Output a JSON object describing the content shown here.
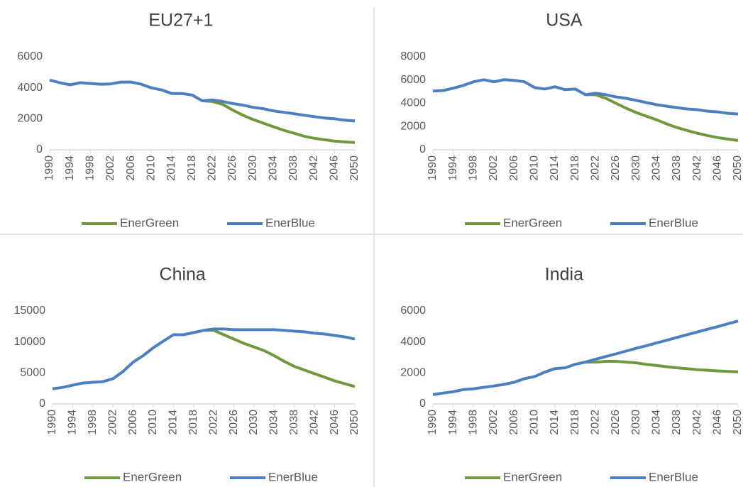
{
  "chart_data": [
    {
      "type": "line",
      "title": "EU27+1",
      "x": [
        1990,
        1992,
        1994,
        1996,
        1998,
        2000,
        2002,
        2004,
        2006,
        2008,
        2010,
        2012,
        2014,
        2016,
        2018,
        2020,
        2022,
        2024,
        2026,
        2028,
        2030,
        2032,
        2034,
        2036,
        2038,
        2040,
        2042,
        2044,
        2046,
        2048,
        2050
      ],
      "xlim": [
        1990,
        2050
      ],
      "xticks": [
        1990,
        1994,
        1998,
        2002,
        2006,
        2010,
        2014,
        2018,
        2022,
        2026,
        2030,
        2034,
        2038,
        2042,
        2046,
        2050
      ],
      "ylim": [
        0,
        6000
      ],
      "yticks": [
        0,
        2000,
        4000,
        6000
      ],
      "grid": false,
      "legend": "bottom",
      "series": [
        {
          "name": "EnerGreen",
          "color": "#70983c",
          "values": [
            null,
            null,
            null,
            null,
            null,
            null,
            null,
            null,
            null,
            null,
            null,
            null,
            null,
            null,
            null,
            3160,
            3120,
            2930,
            2560,
            2230,
            1950,
            1720,
            1490,
            1260,
            1070,
            880,
            740,
            650,
            560,
            510,
            470
          ]
        },
        {
          "name": "EnerBlue",
          "color": "#4a7fc1",
          "values": [
            4500,
            4330,
            4190,
            4330,
            4280,
            4230,
            4250,
            4370,
            4370,
            4230,
            4000,
            3860,
            3630,
            3630,
            3530,
            3160,
            3210,
            3120,
            2980,
            2880,
            2740,
            2650,
            2510,
            2420,
            2330,
            2230,
            2140,
            2050,
            2000,
            1910,
            1860
          ]
        }
      ]
    },
    {
      "type": "line",
      "title": "USA",
      "x": [
        1990,
        1992,
        1994,
        1996,
        1998,
        2000,
        2002,
        2004,
        2006,
        2008,
        2010,
        2012,
        2014,
        2016,
        2018,
        2020,
        2022,
        2024,
        2026,
        2028,
        2030,
        2032,
        2034,
        2036,
        2038,
        2040,
        2042,
        2044,
        2046,
        2048,
        2050
      ],
      "xlim": [
        1990,
        2050
      ],
      "xticks": [
        1990,
        1994,
        1998,
        2002,
        2006,
        2010,
        2014,
        2018,
        2022,
        2026,
        2030,
        2034,
        2038,
        2042,
        2046,
        2050
      ],
      "ylim": [
        0,
        8000
      ],
      "yticks": [
        0,
        2000,
        4000,
        6000,
        8000
      ],
      "grid": false,
      "legend": "bottom",
      "series": [
        {
          "name": "EnerGreen",
          "color": "#70983c",
          "values": [
            null,
            null,
            null,
            null,
            null,
            null,
            null,
            null,
            null,
            null,
            null,
            null,
            null,
            null,
            null,
            4740,
            4740,
            4430,
            4000,
            3570,
            3200,
            2890,
            2580,
            2220,
            1910,
            1660,
            1420,
            1230,
            1050,
            920,
            800
          ]
        },
        {
          "name": "EnerBlue",
          "color": "#4a7fc1",
          "values": [
            5050,
            5100,
            5300,
            5540,
            5850,
            6030,
            5850,
            6030,
            5970,
            5850,
            5350,
            5230,
            5420,
            5170,
            5230,
            4740,
            4860,
            4740,
            4550,
            4430,
            4250,
            4060,
            3880,
            3750,
            3630,
            3510,
            3450,
            3320,
            3260,
            3140,
            3080
          ]
        }
      ]
    },
    {
      "type": "line",
      "title": "China",
      "x": [
        1990,
        1992,
        1994,
        1996,
        1998,
        2000,
        2002,
        2004,
        2006,
        2008,
        2010,
        2012,
        2014,
        2016,
        2018,
        2020,
        2022,
        2024,
        2026,
        2028,
        2030,
        2032,
        2034,
        2036,
        2038,
        2040,
        2042,
        2044,
        2046,
        2048,
        2050
      ],
      "xlim": [
        1990,
        2050
      ],
      "xticks": [
        1990,
        1994,
        1998,
        2002,
        2006,
        2010,
        2014,
        2018,
        2022,
        2026,
        2030,
        2034,
        2038,
        2042,
        2046,
        2050
      ],
      "ylim": [
        0,
        15000
      ],
      "yticks": [
        0,
        5000,
        10000,
        15000
      ],
      "grid": false,
      "legend": "bottom",
      "series": [
        {
          "name": "EnerGreen",
          "color": "#70983c",
          "values": [
            null,
            null,
            null,
            null,
            null,
            null,
            null,
            null,
            null,
            null,
            null,
            null,
            null,
            null,
            null,
            11860,
            11860,
            11160,
            10470,
            9770,
            9190,
            8600,
            7790,
            6860,
            6050,
            5470,
            4880,
            4300,
            3720,
            3260,
            2790
          ]
        },
        {
          "name": "EnerBlue",
          "color": "#4a7fc1",
          "values": [
            2440,
            2670,
            3020,
            3370,
            3490,
            3600,
            4070,
            5230,
            6740,
            7790,
            9070,
            10120,
            11160,
            11160,
            11510,
            11860,
            12090,
            12090,
            11980,
            11980,
            11980,
            11980,
            11980,
            11860,
            11740,
            11630,
            11400,
            11280,
            11050,
            10810,
            10470
          ]
        }
      ]
    },
    {
      "type": "line",
      "title": "India",
      "x": [
        1990,
        1992,
        1994,
        1996,
        1998,
        2000,
        2002,
        2004,
        2006,
        2008,
        2010,
        2012,
        2014,
        2016,
        2018,
        2020,
        2022,
        2024,
        2026,
        2028,
        2030,
        2032,
        2034,
        2036,
        2038,
        2040,
        2042,
        2044,
        2046,
        2048,
        2050
      ],
      "xlim": [
        1990,
        2050
      ],
      "xticks": [
        1990,
        1994,
        1998,
        2002,
        2006,
        2010,
        2014,
        2018,
        2022,
        2026,
        2030,
        2034,
        2038,
        2042,
        2046,
        2050
      ],
      "ylim": [
        0,
        6000
      ],
      "yticks": [
        0,
        2000,
        4000,
        6000
      ],
      "grid": false,
      "legend": "bottom",
      "series": [
        {
          "name": "EnerGreen",
          "color": "#70983c",
          "values": [
            null,
            null,
            null,
            null,
            null,
            null,
            null,
            null,
            null,
            null,
            null,
            null,
            null,
            null,
            null,
            2700,
            2700,
            2750,
            2750,
            2700,
            2650,
            2550,
            2480,
            2400,
            2330,
            2270,
            2210,
            2170,
            2130,
            2100,
            2070
          ]
        },
        {
          "name": "EnerBlue",
          "color": "#4a7fc1",
          "values": [
            600,
            700,
            790,
            930,
            980,
            1070,
            1160,
            1260,
            1400,
            1630,
            1770,
            2050,
            2280,
            2330,
            2560,
            2700,
            2880,
            3060,
            3230,
            3410,
            3590,
            3760,
            3940,
            4110,
            4290,
            4470,
            4640,
            4820,
            4990,
            5170,
            5350
          ]
        }
      ]
    }
  ]
}
